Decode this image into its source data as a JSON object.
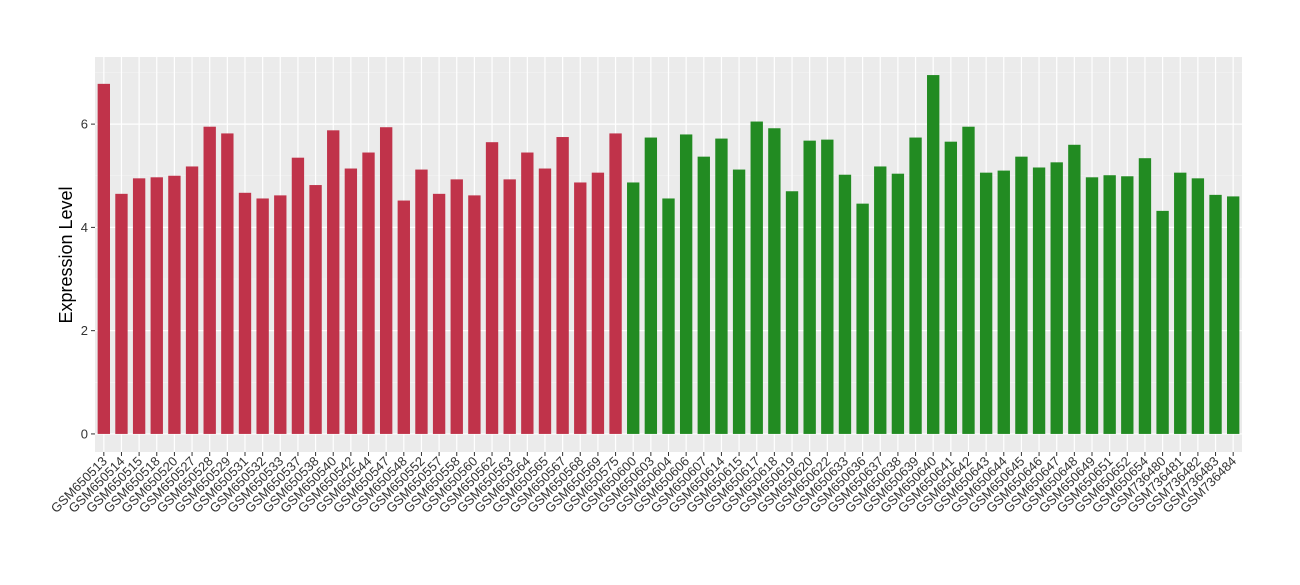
{
  "chart_data": {
    "type": "bar",
    "y_label": "Expression Level",
    "categories": [
      "GSM650513",
      "GSM650514",
      "GSM650515",
      "GSM650518",
      "GSM650520",
      "GSM650527",
      "GSM650528",
      "GSM650529",
      "GSM650531",
      "GSM650532",
      "GSM650533",
      "GSM650537",
      "GSM650538",
      "GSM650540",
      "GSM650542",
      "GSM650544",
      "GSM650547",
      "GSM650548",
      "GSM650552",
      "GSM650557",
      "GSM650558",
      "GSM650560",
      "GSM650562",
      "GSM650563",
      "GSM650564",
      "GSM650565",
      "GSM650567",
      "GSM650568",
      "GSM650569",
      "GSM650575",
      "GSM650600",
      "GSM650603",
      "GSM650604",
      "GSM650606",
      "GSM650607",
      "GSM650614",
      "GSM650615",
      "GSM650617",
      "GSM650618",
      "GSM650619",
      "GSM650620",
      "GSM650622",
      "GSM650633",
      "GSM650636",
      "GSM650637",
      "GSM650638",
      "GSM650639",
      "GSM650640",
      "GSM650641",
      "GSM650642",
      "GSM650643",
      "GSM650644",
      "GSM650645",
      "GSM650646",
      "GSM650647",
      "GSM650648",
      "GSM650649",
      "GSM650651",
      "GSM650652",
      "GSM650654",
      "GSM736480",
      "GSM736481",
      "GSM736482",
      "GSM736483",
      "GSM736484"
    ],
    "values": [
      6.78,
      4.65,
      4.95,
      4.97,
      5.0,
      5.18,
      5.95,
      5.82,
      4.67,
      4.56,
      4.62,
      5.35,
      4.82,
      5.88,
      5.14,
      5.45,
      5.94,
      4.52,
      5.12,
      4.65,
      4.93,
      4.62,
      5.65,
      4.93,
      5.45,
      5.14,
      5.75,
      4.87,
      5.06,
      5.82,
      4.87,
      5.74,
      4.56,
      5.8,
      5.37,
      5.72,
      5.12,
      6.05,
      5.92,
      4.7,
      5.68,
      5.7,
      5.02,
      4.46,
      5.18,
      5.04,
      5.74,
      6.95,
      5.66,
      5.95,
      5.06,
      5.1,
      5.37,
      5.16,
      5.26,
      5.6,
      4.97,
      5.01,
      4.99,
      5.34,
      4.32,
      5.06,
      4.95,
      4.63,
      4.6
    ],
    "colors": [
      "#c0334a",
      "#c0334a",
      "#c0334a",
      "#c0334a",
      "#c0334a",
      "#c0334a",
      "#c0334a",
      "#c0334a",
      "#c0334a",
      "#c0334a",
      "#c0334a",
      "#c0334a",
      "#c0334a",
      "#c0334a",
      "#c0334a",
      "#c0334a",
      "#c0334a",
      "#c0334a",
      "#c0334a",
      "#c0334a",
      "#c0334a",
      "#c0334a",
      "#c0334a",
      "#c0334a",
      "#c0334a",
      "#c0334a",
      "#c0334a",
      "#c0334a",
      "#c0334a",
      "#c0334a",
      "#228b22",
      "#228b22",
      "#228b22",
      "#228b22",
      "#228b22",
      "#228b22",
      "#228b22",
      "#228b22",
      "#228b22",
      "#228b22",
      "#228b22",
      "#228b22",
      "#228b22",
      "#228b22",
      "#228b22",
      "#228b22",
      "#228b22",
      "#228b22",
      "#228b22",
      "#228b22",
      "#228b22",
      "#228b22",
      "#228b22",
      "#228b22",
      "#228b22",
      "#228b22",
      "#228b22",
      "#228b22",
      "#228b22",
      "#228b22",
      "#228b22",
      "#228b22",
      "#228b22",
      "#228b22",
      "#228b22"
    ],
    "ylim": [
      -0.35,
      7.3
    ],
    "yticks": [
      0,
      2,
      4,
      6
    ],
    "minor_yticks": [
      1,
      3,
      5,
      7
    ],
    "grid": true
  }
}
